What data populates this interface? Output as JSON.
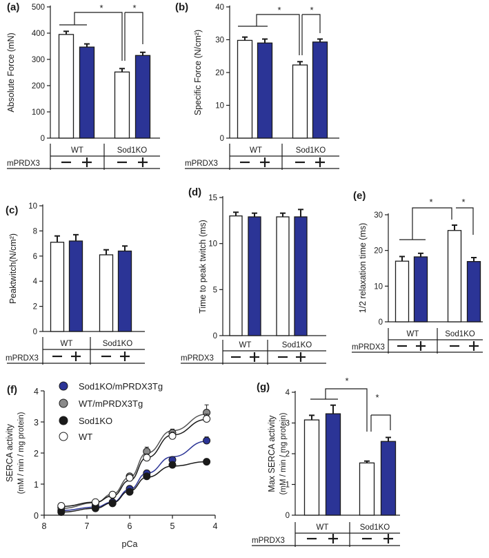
{
  "colors": {
    "wt_fill": "#ffffff",
    "prdx_fill": "#2b3496",
    "outline": "#1a1a1a",
    "curve_blue": "#2b3496",
    "grey": "#8a8a8a"
  },
  "chart_data": [
    {
      "id": "a",
      "panel": "(a)",
      "type": "bar",
      "ylabel": "Absolute Force (mN)",
      "ylim": [
        0,
        500
      ],
      "yticks": [
        0,
        100,
        200,
        300,
        400,
        500
      ],
      "groups": [
        "WT",
        "Sod1KO"
      ],
      "treatment_label": "mPRDX3",
      "bars": [
        {
          "group": "WT",
          "treatment": "−",
          "value": 395,
          "error": 12
        },
        {
          "group": "WT",
          "treatment": "+",
          "value": 347,
          "error": 12
        },
        {
          "group": "Sod1KO",
          "treatment": "−",
          "value": 252,
          "error": 13
        },
        {
          "group": "Sod1KO",
          "treatment": "+",
          "value": 315,
          "error": 12
        }
      ],
      "significance": [
        "*",
        "*"
      ]
    },
    {
      "id": "b",
      "panel": "(b)",
      "type": "bar",
      "ylabel": "Specific Force (N/cm²)",
      "ylim": [
        0,
        40
      ],
      "yticks": [
        0,
        10,
        20,
        30,
        40
      ],
      "groups": [
        "WT",
        "Sod1KO"
      ],
      "treatment_label": "mPRDX3",
      "bars": [
        {
          "group": "WT",
          "treatment": "−",
          "value": 29.8,
          "error": 1.0
        },
        {
          "group": "WT",
          "treatment": "+",
          "value": 29.0,
          "error": 1.2
        },
        {
          "group": "Sod1KO",
          "treatment": "−",
          "value": 22.3,
          "error": 1.0
        },
        {
          "group": "Sod1KO",
          "treatment": "+",
          "value": 29.3,
          "error": 0.9
        }
      ],
      "significance": [
        "*",
        "*"
      ]
    },
    {
      "id": "c",
      "panel": "(c)",
      "type": "bar",
      "ylabel": "Peaktwitch(N/cm²)",
      "ylim": [
        0,
        10
      ],
      "yticks": [
        0,
        2,
        4,
        6,
        8,
        10
      ],
      "groups": [
        "WT",
        "Sod1KO"
      ],
      "treatment_label": "mPRDX3",
      "bars": [
        {
          "group": "WT",
          "treatment": "−",
          "value": 7.1,
          "error": 0.5
        },
        {
          "group": "WT",
          "treatment": "+",
          "value": 7.2,
          "error": 0.5
        },
        {
          "group": "Sod1KO",
          "treatment": "−",
          "value": 6.1,
          "error": 0.4
        },
        {
          "group": "Sod1KO",
          "treatment": "+",
          "value": 6.4,
          "error": 0.4
        }
      ],
      "significance": []
    },
    {
      "id": "d",
      "panel": "(d)",
      "type": "bar",
      "ylabel": "Time to peak twitch (ms)",
      "ylim": [
        0,
        15
      ],
      "yticks": [
        0,
        5,
        10,
        15
      ],
      "groups": [
        "WT",
        "Sod1KO"
      ],
      "treatment_label": "mPRDX3",
      "bars": [
        {
          "group": "WT",
          "treatment": "−",
          "value": 13.0,
          "error": 0.4
        },
        {
          "group": "WT",
          "treatment": "+",
          "value": 12.9,
          "error": 0.4
        },
        {
          "group": "Sod1KO",
          "treatment": "−",
          "value": 12.9,
          "error": 0.4
        },
        {
          "group": "Sod1KO",
          "treatment": "+",
          "value": 12.9,
          "error": 0.8
        }
      ],
      "significance": []
    },
    {
      "id": "e",
      "panel": "(e)",
      "type": "bar",
      "ylabel": "1/2 relaxation time (ms)",
      "ylim": [
        0,
        30
      ],
      "yticks": [
        0,
        10,
        20,
        30
      ],
      "groups": [
        "WT",
        "Sod1KO"
      ],
      "treatment_label": "mPRDX3",
      "bars": [
        {
          "group": "WT",
          "treatment": "−",
          "value": 17.0,
          "error": 1.3
        },
        {
          "group": "WT",
          "treatment": "+",
          "value": 18.2,
          "error": 1.0
        },
        {
          "group": "Sod1KO",
          "treatment": "−",
          "value": 25.6,
          "error": 1.5
        },
        {
          "group": "Sod1KO",
          "treatment": "+",
          "value": 16.9,
          "error": 1.1
        }
      ],
      "significance": [
        "*",
        "*"
      ]
    },
    {
      "id": "f",
      "panel": "(f)",
      "type": "line",
      "ylabel": "SERCA activity",
      "ylabel2": "(mM / min / mg protein)",
      "xlabel": "pCa",
      "xlim": [
        8,
        4
      ],
      "ylim": [
        0,
        4
      ],
      "xticks": [
        8,
        7,
        6,
        5,
        4
      ],
      "yticks": [
        0,
        1,
        2,
        3,
        4
      ],
      "x": [
        7.6,
        6.8,
        6.4,
        6.0,
        5.6,
        5.0,
        4.2
      ],
      "series": [
        {
          "name": "Sod1KO/mPRDX3Tg",
          "marker": "blue",
          "values": [
            0.15,
            0.3,
            0.42,
            0.85,
            1.35,
            1.78,
            2.4
          ],
          "errors": [
            0.03,
            0.03,
            0.05,
            0.06,
            0.08,
            0.08,
            0.12
          ],
          "fit": [
            0.15,
            0.26,
            0.42,
            0.83,
            1.35,
            1.88,
            2.38
          ]
        },
        {
          "name": "WT/mPRDX3Tg",
          "marker": "grey",
          "values": [
            0.25,
            0.4,
            0.65,
            1.25,
            2.05,
            2.65,
            3.3
          ],
          "errors": [
            0.03,
            0.04,
            0.06,
            0.08,
            0.14,
            0.12,
            0.25
          ],
          "fit": [
            0.22,
            0.4,
            0.68,
            1.22,
            2.0,
            2.72,
            3.25
          ]
        },
        {
          "name": "Sod1KO",
          "marker": "black",
          "values": [
            0.1,
            0.22,
            0.38,
            0.75,
            1.25,
            1.62,
            1.72
          ],
          "errors": [
            0.02,
            0.03,
            0.04,
            0.05,
            0.06,
            0.05,
            0.04
          ],
          "fit": [
            0.1,
            0.22,
            0.4,
            0.78,
            1.22,
            1.58,
            1.72
          ]
        },
        {
          "name": "WT",
          "marker": "white",
          "values": [
            0.3,
            0.42,
            0.66,
            1.2,
            1.85,
            2.55,
            3.1
          ],
          "errors": [
            0.03,
            0.04,
            0.05,
            0.08,
            0.12,
            0.12,
            0.15
          ],
          "fit": [
            0.28,
            0.42,
            0.62,
            1.12,
            1.85,
            2.58,
            3.08
          ]
        }
      ]
    },
    {
      "id": "g",
      "panel": "(g)",
      "type": "bar",
      "ylabel": "Max SERCA activity",
      "ylabel2": "(mM / min / mg protein)",
      "ylim": [
        0,
        4
      ],
      "yticks": [
        0,
        1,
        2,
        3,
        4
      ],
      "groups": [
        "WT",
        "Sod1KO"
      ],
      "treatment_label": "mPRDX3",
      "bars": [
        {
          "group": "WT",
          "treatment": "−",
          "value": 3.1,
          "error": 0.15
        },
        {
          "group": "WT",
          "treatment": "+",
          "value": 3.3,
          "error": 0.28
        },
        {
          "group": "Sod1KO",
          "treatment": "−",
          "value": 1.7,
          "error": 0.06
        },
        {
          "group": "Sod1KO",
          "treatment": "+",
          "value": 2.4,
          "error": 0.13
        }
      ],
      "significance": [
        "*",
        "*"
      ]
    }
  ]
}
